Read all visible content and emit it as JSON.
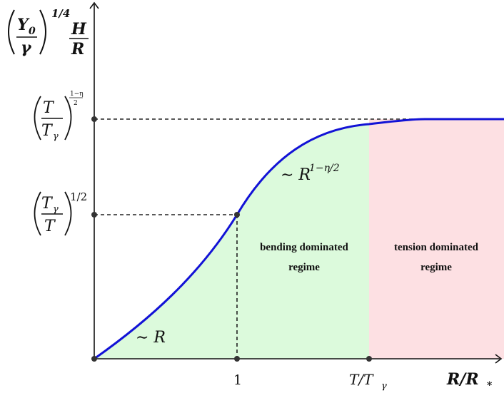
{
  "colors": {
    "curve": "#1212d6",
    "bending_fill": "#dcfadc",
    "tension_fill": "#fde0e3",
    "guides": "#222222",
    "axes": "#111111"
  },
  "y_axis_label": {
    "factor": "Y",
    "factor_sub": "0",
    "factor_den": "γ",
    "exponent": "1/4",
    "ratio_num": "H",
    "ratio_den": "R"
  },
  "x_axis_label": "R/R",
  "x_axis_label_sub": "*",
  "x_ticks": [
    {
      "text": "1",
      "value": 1
    },
    {
      "text": "T/T",
      "sub": "γ",
      "value": "T/Tγ"
    }
  ],
  "y_ticks": [
    {
      "num": "T",
      "den": "T",
      "den_sub": "γ",
      "exponent": "1−η",
      "exponent_den": "2"
    },
    {
      "num": "T",
      "num_sub": "γ",
      "den": "T",
      "exponent": "1/2"
    }
  ],
  "regimes": {
    "bending": [
      "bending dominated",
      "regime"
    ],
    "tension": [
      "tension dominated",
      "regime"
    ]
  },
  "scaling_labels": {
    "small_R": "∼ R",
    "mid_R_base": "∼ R",
    "mid_R_exp": "1−η/2"
  }
}
